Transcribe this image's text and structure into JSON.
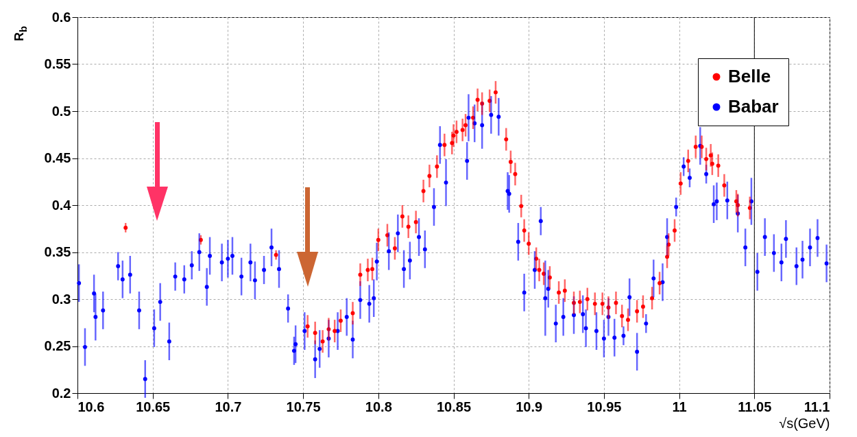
{
  "chart_data": {
    "type": "scatter",
    "xlabel": "√s(GeV)",
    "ylabel": "R$_{b}$",
    "xlim": [
      10.6,
      11.1
    ],
    "xticks": [
      10.6,
      10.65,
      10.7,
      10.75,
      10.8,
      10.85,
      10.9,
      10.95,
      11,
      11.05,
      11.1
    ],
    "ylim": [
      0.2,
      0.6
    ],
    "yticks": [
      0.2,
      0.25,
      0.3,
      0.35,
      0.4,
      0.45,
      0.5,
      0.55,
      0.6
    ],
    "grid": true,
    "legend": "top right",
    "marker": "circle",
    "ref_lines": [
      {
        "axis": "x",
        "value": 11.05,
        "color": "#000000"
      }
    ],
    "series": [
      {
        "name": "Belle",
        "color": "#ff0000",
        "x": [
          10.632,
          10.682,
          10.732,
          10.753,
          10.758,
          10.763,
          10.767,
          10.771,
          10.775,
          10.783,
          10.788,
          10.793,
          10.796,
          10.8,
          10.806,
          10.811,
          10.816,
          10.82,
          10.825,
          10.83,
          10.834,
          10.839,
          10.844,
          10.849,
          10.85,
          10.852,
          10.856,
          10.858,
          10.863,
          10.866,
          10.869,
          10.874,
          10.878,
          10.885,
          10.888,
          10.891,
          10.895,
          10.897,
          10.9,
          10.905,
          10.907,
          10.91,
          10.914,
          10.92,
          10.924,
          10.93,
          10.934,
          10.939,
          10.944,
          10.949,
          10.953,
          10.958,
          10.962,
          10.966,
          10.972,
          10.976,
          10.982,
          10.987,
          10.992,
          10.993,
          10.997,
          11.001,
          11.006,
          11.011,
          11.015,
          11.018,
          11.021,
          11.022,
          11.026,
          11.03,
          11.038,
          11.039,
          11.047
        ],
        "values": [
          0.376,
          0.363,
          0.347,
          0.271,
          0.264,
          0.255,
          0.268,
          0.266,
          0.277,
          0.285,
          0.326,
          0.331,
          0.332,
          0.363,
          0.368,
          0.354,
          0.388,
          0.377,
          0.382,
          0.415,
          0.431,
          0.441,
          0.464,
          0.466,
          0.474,
          0.478,
          0.48,
          0.485,
          0.493,
          0.512,
          0.508,
          0.511,
          0.52,
          0.47,
          0.446,
          0.433,
          0.399,
          0.373,
          0.359,
          0.343,
          0.331,
          0.327,
          0.323,
          0.307,
          0.309,
          0.296,
          0.297,
          0.3,
          0.295,
          0.295,
          0.291,
          0.296,
          0.282,
          0.278,
          0.287,
          0.292,
          0.301,
          0.317,
          0.345,
          0.358,
          0.373,
          0.423,
          0.447,
          0.462,
          0.462,
          0.449,
          0.453,
          0.444,
          0.442,
          0.421,
          0.404,
          0.4,
          0.397
        ],
        "errors": [
          0.005,
          0.005,
          0.005,
          0.012,
          0.012,
          0.012,
          0.012,
          0.012,
          0.012,
          0.012,
          0.012,
          0.012,
          0.012,
          0.012,
          0.012,
          0.012,
          0.012,
          0.012,
          0.012,
          0.012,
          0.012,
          0.012,
          0.012,
          0.012,
          0.012,
          0.012,
          0.012,
          0.012,
          0.012,
          0.012,
          0.012,
          0.012,
          0.012,
          0.012,
          0.012,
          0.012,
          0.012,
          0.012,
          0.012,
          0.012,
          0.012,
          0.012,
          0.012,
          0.012,
          0.012,
          0.012,
          0.012,
          0.012,
          0.012,
          0.012,
          0.012,
          0.012,
          0.012,
          0.012,
          0.012,
          0.012,
          0.012,
          0.012,
          0.012,
          0.012,
          0.012,
          0.012,
          0.012,
          0.012,
          0.012,
          0.012,
          0.012,
          0.012,
          0.012,
          0.012,
          0.012,
          0.012,
          0.012
        ]
      },
      {
        "name": "Babar",
        "color": "#0000ff",
        "x": [
          10.601,
          10.605,
          10.611,
          10.612,
          10.617,
          10.627,
          10.63,
          10.635,
          10.641,
          10.645,
          10.651,
          10.655,
          10.661,
          10.665,
          10.671,
          10.676,
          10.681,
          10.686,
          10.688,
          10.696,
          10.7,
          10.703,
          10.709,
          10.715,
          10.718,
          10.724,
          10.729,
          10.734,
          10.74,
          10.744,
          10.745,
          10.751,
          10.758,
          10.761,
          10.767,
          10.773,
          10.779,
          10.783,
          10.788,
          10.794,
          10.797,
          10.799,
          10.807,
          10.813,
          10.817,
          10.821,
          10.827,
          10.831,
          10.837,
          10.841,
          10.845,
          10.859,
          10.86,
          10.864,
          10.869,
          10.875,
          10.88,
          10.886,
          10.887,
          10.893,
          10.897,
          10.904,
          10.908,
          10.911,
          10.913,
          10.918,
          10.923,
          10.93,
          10.936,
          10.938,
          10.945,
          10.95,
          10.953,
          10.957,
          10.963,
          10.967,
          10.972,
          10.978,
          10.983,
          10.989,
          10.992,
          10.998,
          11.003,
          11.007,
          11.014,
          11.018,
          11.023,
          11.025,
          11.032,
          11.039,
          11.044,
          11.048,
          11.052,
          11.057,
          11.063,
          11.068,
          11.071,
          11.078,
          11.082,
          11.087,
          11.092,
          11.098
        ],
        "values": [
          0.317,
          0.249,
          0.306,
          0.281,
          0.288,
          0.335,
          0.321,
          0.326,
          0.288,
          0.215,
          0.269,
          0.297,
          0.255,
          0.324,
          0.321,
          0.336,
          0.35,
          0.313,
          0.346,
          0.339,
          0.343,
          0.346,
          0.324,
          0.339,
          0.32,
          0.331,
          0.355,
          0.332,
          0.29,
          0.245,
          0.252,
          0.266,
          0.236,
          0.247,
          0.258,
          0.266,
          0.281,
          0.257,
          0.299,
          0.295,
          0.301,
          0.34,
          0.351,
          0.37,
          0.332,
          0.341,
          0.366,
          0.353,
          0.398,
          0.464,
          0.424,
          0.447,
          0.493,
          0.487,
          0.485,
          0.496,
          0.494,
          0.415,
          0.412,
          0.361,
          0.307,
          0.331,
          0.383,
          0.301,
          0.311,
          0.274,
          0.281,
          0.283,
          0.284,
          0.269,
          0.266,
          0.258,
          0.281,
          0.259,
          0.261,
          0.302,
          0.244,
          0.274,
          0.322,
          0.318,
          0.366,
          0.398,
          0.441,
          0.429,
          0.463,
          0.433,
          0.401,
          0.404,
          0.405,
          0.391,
          0.355,
          0.404,
          0.329,
          0.366,
          0.349,
          0.339,
          0.364,
          0.335,
          0.342,
          0.355,
          0.365,
          0.338
        ],
        "errors": [
          0.02,
          0.02,
          0.02,
          0.025,
          0.02,
          0.015,
          0.02,
          0.02,
          0.02,
          0.02,
          0.02,
          0.02,
          0.02,
          0.015,
          0.015,
          0.015,
          0.02,
          0.02,
          0.02,
          0.02,
          0.02,
          0.02,
          0.02,
          0.02,
          0.02,
          0.015,
          0.02,
          0.02,
          0.015,
          0.015,
          0.02,
          0.02,
          0.02,
          0.02,
          0.02,
          0.02,
          0.02,
          0.02,
          0.02,
          0.02,
          0.02,
          0.02,
          0.02,
          0.02,
          0.02,
          0.02,
          0.02,
          0.02,
          0.02,
          0.02,
          0.025,
          0.02,
          0.025,
          0.02,
          0.025,
          0.02,
          0.02,
          0.02,
          0.02,
          0.02,
          0.02,
          0.02,
          0.015,
          0.04,
          0.02,
          0.02,
          0.02,
          0.02,
          0.02,
          0.02,
          0.02,
          0.02,
          0.02,
          0.02,
          0.01,
          0.02,
          0.02,
          0.01,
          0.02,
          0.02,
          0.02,
          0.01,
          0.01,
          0.01,
          0.02,
          0.01,
          0.02,
          0.02,
          0.02,
          0.02,
          0.02,
          0.025,
          0.02,
          0.02,
          0.02,
          0.02,
          0.02,
          0.02,
          0.02,
          0.02,
          0.02,
          0.02
        ]
      }
    ]
  }
}
